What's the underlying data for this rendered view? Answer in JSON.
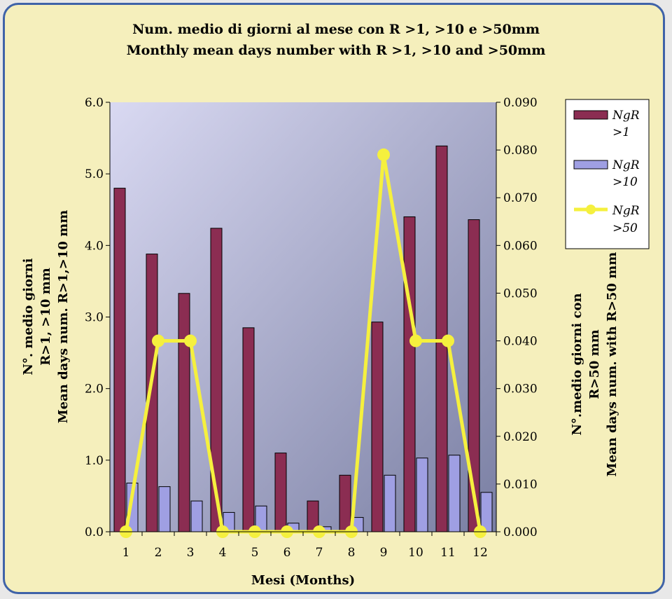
{
  "chart_data": {
    "type": "bar",
    "title_it": "Num. medio di giorni al mese con R >1, >10 e >50mm",
    "title_en": "Monthly mean days number with R >1, >10 and >50mm",
    "xlabel": "Mesi (Months)",
    "ylabel_left": [
      "N°. medio giorni",
      "R>1, >10 mm",
      "Mean days num. R>1,>10 mm"
    ],
    "ylabel_right": [
      "N°.medio giorni con",
      "R>50 mm",
      "Mean days num. with R>50 mm"
    ],
    "categories": [
      "1",
      "2",
      "3",
      "4",
      "5",
      "6",
      "7",
      "8",
      "9",
      "10",
      "11",
      "12"
    ],
    "ylim_left": [
      0,
      6
    ],
    "ylim_right": [
      0,
      0.09
    ],
    "yticks_left": [
      "0.0",
      "1.0",
      "2.0",
      "3.0",
      "4.0",
      "5.0",
      "6.0"
    ],
    "yticks_right": [
      "0.000",
      "0.010",
      "0.020",
      "0.030",
      "0.040",
      "0.050",
      "0.060",
      "0.070",
      "0.080",
      "0.090"
    ],
    "series": [
      {
        "name": "NgR >1",
        "type": "bar",
        "axis": "left",
        "color": "#8b2d52",
        "values": [
          4.8,
          3.88,
          3.33,
          4.24,
          2.85,
          1.1,
          0.43,
          0.79,
          2.93,
          4.4,
          5.39,
          4.36
        ]
      },
      {
        "name": "NgR >10",
        "type": "bar",
        "axis": "left",
        "color": "#9f9fe3",
        "values": [
          0.68,
          0.63,
          0.43,
          0.27,
          0.36,
          0.12,
          0.07,
          0.2,
          0.79,
          1.03,
          1.07,
          0.55
        ]
      },
      {
        "name": "NgR >50",
        "type": "line",
        "axis": "right",
        "color": "#f5f03e",
        "values": [
          0.0,
          0.04,
          0.04,
          0.0,
          0.0,
          0.0,
          0.0,
          0.0,
          0.079,
          0.04,
          0.04,
          0.0
        ]
      }
    ],
    "legend": [
      {
        "line1": "NgR",
        "line2": ">1"
      },
      {
        "line1": "NgR",
        "line2": ">10"
      },
      {
        "line1": "NgR",
        "line2": ">50"
      }
    ],
    "legend_position": "right"
  }
}
